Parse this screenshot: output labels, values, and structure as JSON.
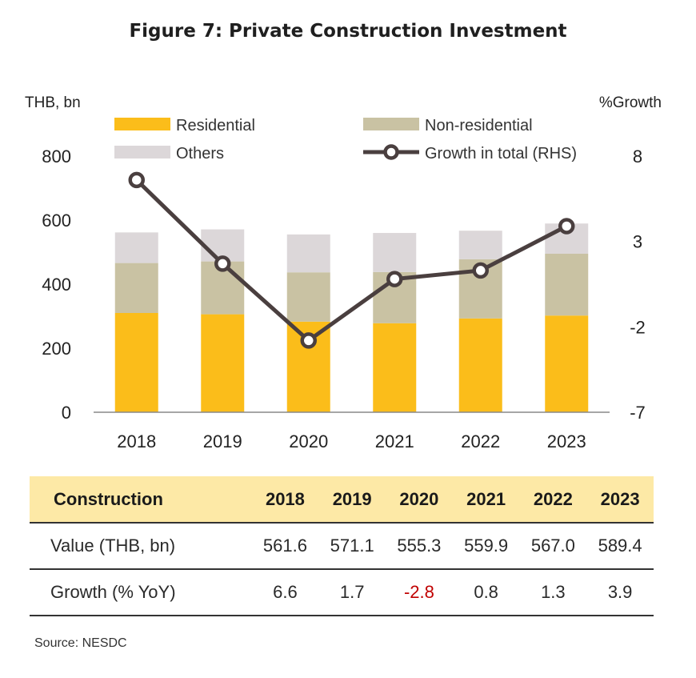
{
  "title": "Figure 7: Private Construction Investment",
  "source": "Source: NESDC",
  "chart_data": {
    "type": "bar",
    "stacked": true,
    "categories": [
      "2018",
      "2019",
      "2020",
      "2021",
      "2022",
      "2023"
    ],
    "left_axis": {
      "label": "THB, bn",
      "ylim": [
        0,
        800
      ],
      "ticks": [
        "0",
        "200",
        "400",
        "600",
        "800"
      ]
    },
    "right_axis": {
      "label": "%Growth",
      "ylim": [
        -7,
        8
      ],
      "ticks": [
        "-7",
        "-2",
        "3",
        "8"
      ]
    },
    "series": [
      {
        "name": "Residential",
        "type": "bar",
        "color": "#fbbd1a",
        "values": [
          310,
          306,
          283,
          278,
          293,
          302
        ]
      },
      {
        "name": "Non-residential",
        "type": "bar",
        "color": "#c9c2a3",
        "values": [
          156,
          165,
          154,
          160,
          185,
          193
        ]
      },
      {
        "name": "Others",
        "type": "bar",
        "color": "#dcd7d9",
        "values": [
          95.6,
          100.1,
          118.3,
          121.9,
          89.0,
          94.4
        ]
      },
      {
        "name": "Growth in total (RHS)",
        "type": "line",
        "axis": "right",
        "color": "#4a3f3f",
        "values": [
          6.6,
          1.7,
          -2.8,
          0.8,
          1.3,
          3.9
        ]
      }
    ],
    "grid": false,
    "legend_position": "top"
  },
  "table": {
    "header": [
      "Construction",
      "2018",
      "2019",
      "2020",
      "2021",
      "2022",
      "2023"
    ],
    "rows": [
      {
        "label": "Value (THB, bn)",
        "values": [
          "561.6",
          "571.1",
          "555.3",
          "559.9",
          "567.0",
          "589.4"
        ]
      },
      {
        "label": "Growth (% YoY)",
        "values": [
          "6.6",
          "1.7",
          "-2.8",
          "0.8",
          "1.3",
          "3.9"
        ]
      }
    ]
  }
}
